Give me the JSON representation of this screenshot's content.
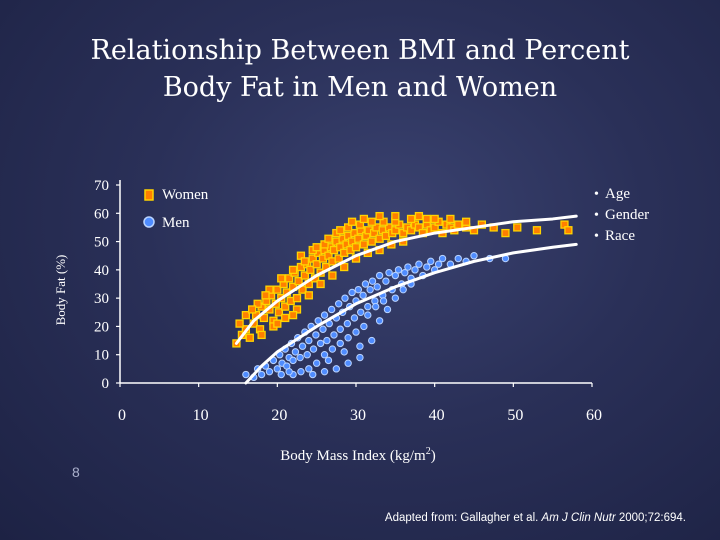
{
  "slide": {
    "title_line1": "Relationship Between BMI and Percent",
    "title_line2": "Body Fat in Men and Women",
    "slide_number": "8",
    "citation_prefix": "Adapted from: Gallagher et al. ",
    "citation_journal": "Am J Clin Nutr",
    "citation_suffix": " 2000;72:694."
  },
  "colors": {
    "women_fill": "#ff7f00",
    "women_edge": "#ffd400",
    "men_fill": "#4f8cff",
    "men_edge": "#b9d3ff",
    "curve": "#ffffff"
  },
  "chart_data": {
    "type": "scatter",
    "xlabel": "Body Mass Index (kg/m",
    "xlabel_sup": "2",
    "xlabel_end": ")",
    "ylabel": "Body Fat (%)",
    "xlim": [
      0,
      60
    ],
    "ylim": [
      0,
      70
    ],
    "x_ticks": [
      0,
      10,
      20,
      30,
      40,
      50,
      60
    ],
    "y_ticks": [
      0,
      10,
      20,
      30,
      40,
      50,
      60,
      70
    ],
    "legend": [
      {
        "name": "Women",
        "marker": "square"
      },
      {
        "name": "Men",
        "marker": "circle"
      }
    ],
    "legend_placement": "top-left",
    "covariates": [
      "Age",
      "Gender",
      "Race"
    ],
    "series": [
      {
        "name": "Women",
        "points": [
          [
            14.8,
            14
          ],
          [
            15.5,
            17
          ],
          [
            16.0,
            19
          ],
          [
            16.5,
            16
          ],
          [
            17.0,
            21
          ],
          [
            17.3,
            24
          ],
          [
            17.8,
            19
          ],
          [
            18.0,
            27
          ],
          [
            18.3,
            23
          ],
          [
            18.6,
            29
          ],
          [
            19.0,
            26
          ],
          [
            19.2,
            31
          ],
          [
            19.5,
            22
          ],
          [
            19.8,
            28
          ],
          [
            20.0,
            33
          ],
          [
            20.2,
            25
          ],
          [
            20.5,
            30
          ],
          [
            20.8,
            35
          ],
          [
            21.0,
            27
          ],
          [
            21.2,
            32
          ],
          [
            21.5,
            37
          ],
          [
            21.7,
            29
          ],
          [
            22.0,
            34
          ],
          [
            22.2,
            39
          ],
          [
            22.5,
            30
          ],
          [
            22.7,
            36
          ],
          [
            23.0,
            41
          ],
          [
            23.2,
            33
          ],
          [
            23.5,
            38
          ],
          [
            23.8,
            42
          ],
          [
            24.0,
            35
          ],
          [
            24.2,
            40
          ],
          [
            24.5,
            44
          ],
          [
            24.8,
            37
          ],
          [
            25.0,
            42
          ],
          [
            25.2,
            46
          ],
          [
            25.5,
            39
          ],
          [
            25.8,
            44
          ],
          [
            26.0,
            47
          ],
          [
            26.2,
            41
          ],
          [
            26.5,
            45
          ],
          [
            26.8,
            48
          ],
          [
            27.0,
            43
          ],
          [
            27.2,
            47
          ],
          [
            27.5,
            50
          ],
          [
            27.8,
            44
          ],
          [
            28.0,
            48
          ],
          [
            28.3,
            51
          ],
          [
            28.5,
            46
          ],
          [
            28.8,
            49
          ],
          [
            29.0,
            52
          ],
          [
            29.3,
            47
          ],
          [
            29.5,
            50
          ],
          [
            29.8,
            53
          ],
          [
            30.0,
            48
          ],
          [
            30.3,
            51
          ],
          [
            30.6,
            54
          ],
          [
            31.0,
            49
          ],
          [
            31.3,
            52
          ],
          [
            31.6,
            54
          ],
          [
            32.0,
            50
          ],
          [
            32.3,
            53
          ],
          [
            32.6,
            55
          ],
          [
            33.0,
            51
          ],
          [
            33.4,
            54
          ],
          [
            33.8,
            52
          ],
          [
            34.2,
            55
          ],
          [
            34.6,
            53
          ],
          [
            35.0,
            54
          ],
          [
            35.5,
            56
          ],
          [
            36.0,
            53
          ],
          [
            36.5,
            55
          ],
          [
            37.0,
            54
          ],
          [
            37.5,
            56
          ],
          [
            38.0,
            55
          ],
          [
            38.5,
            53
          ],
          [
            39.0,
            56
          ],
          [
            39.5,
            54
          ],
          [
            40.0,
            55
          ],
          [
            40.5,
            57
          ],
          [
            41.0,
            53
          ],
          [
            41.5,
            56
          ],
          [
            42.0,
            55
          ],
          [
            42.5,
            54
          ],
          [
            43.0,
            56
          ],
          [
            44.0,
            55
          ],
          [
            45.0,
            54
          ],
          [
            46.0,
            56
          ],
          [
            47.5,
            55
          ],
          [
            49.0,
            53
          ],
          [
            50.5,
            55
          ],
          [
            53.0,
            54
          ],
          [
            56.5,
            56
          ],
          [
            57.0,
            54
          ],
          [
            19.5,
            20
          ],
          [
            21.0,
            23
          ],
          [
            22.5,
            26
          ],
          [
            24.0,
            31
          ],
          [
            25.5,
            35
          ],
          [
            27.0,
            38
          ],
          [
            28.5,
            41
          ],
          [
            30.0,
            44
          ],
          [
            31.5,
            46
          ],
          [
            33.0,
            47
          ],
          [
            34.5,
            49
          ],
          [
            36.0,
            50
          ],
          [
            23.0,
            45
          ],
          [
            24.5,
            47
          ],
          [
            26.0,
            49
          ],
          [
            27.5,
            53
          ],
          [
            29.0,
            55
          ],
          [
            30.5,
            56
          ],
          [
            32.0,
            57
          ],
          [
            33.5,
            57
          ],
          [
            35.0,
            57
          ],
          [
            37.0,
            58
          ],
          [
            39.0,
            58
          ],
          [
            18.0,
            17
          ],
          [
            20.0,
            21
          ],
          [
            22.0,
            24
          ],
          [
            16.0,
            24
          ],
          [
            17.5,
            28
          ],
          [
            19.0,
            33
          ],
          [
            20.5,
            37
          ],
          [
            22.0,
            40
          ],
          [
            23.5,
            43
          ],
          [
            25.0,
            48
          ],
          [
            26.5,
            51
          ],
          [
            28.0,
            54
          ],
          [
            29.5,
            57
          ],
          [
            31.0,
            58
          ],
          [
            33.0,
            59
          ],
          [
            35.0,
            59
          ],
          [
            38.0,
            59
          ],
          [
            40.0,
            58
          ],
          [
            42.0,
            58
          ],
          [
            44.0,
            57
          ],
          [
            15.2,
            21
          ],
          [
            16.8,
            26
          ],
          [
            18.5,
            31
          ]
        ]
      },
      {
        "name": "Men",
        "points": [
          [
            16.0,
            3
          ],
          [
            17.0,
            2
          ],
          [
            17.5,
            5
          ],
          [
            18.0,
            3
          ],
          [
            18.5,
            6
          ],
          [
            19.0,
            4
          ],
          [
            19.5,
            8
          ],
          [
            20.0,
            5
          ],
          [
            20.3,
            10
          ],
          [
            20.6,
            7
          ],
          [
            21.0,
            12
          ],
          [
            21.2,
            6
          ],
          [
            21.5,
            9
          ],
          [
            21.8,
            14
          ],
          [
            22.0,
            8
          ],
          [
            22.3,
            11
          ],
          [
            22.6,
            16
          ],
          [
            22.9,
            9
          ],
          [
            23.2,
            13
          ],
          [
            23.5,
            18
          ],
          [
            23.8,
            10
          ],
          [
            24.0,
            15
          ],
          [
            24.3,
            20
          ],
          [
            24.6,
            12
          ],
          [
            24.9,
            17
          ],
          [
            25.2,
            22
          ],
          [
            25.5,
            14
          ],
          [
            25.8,
            19
          ],
          [
            26.0,
            24
          ],
          [
            26.3,
            15
          ],
          [
            26.6,
            21
          ],
          [
            26.9,
            26
          ],
          [
            27.2,
            17
          ],
          [
            27.5,
            23
          ],
          [
            27.8,
            28
          ],
          [
            28.0,
            19
          ],
          [
            28.3,
            25
          ],
          [
            28.6,
            30
          ],
          [
            28.9,
            21
          ],
          [
            29.2,
            27
          ],
          [
            29.5,
            32
          ],
          [
            29.8,
            23
          ],
          [
            30.0,
            29
          ],
          [
            30.3,
            33
          ],
          [
            30.6,
            25
          ],
          [
            30.9,
            31
          ],
          [
            31.2,
            35
          ],
          [
            31.5,
            27
          ],
          [
            31.8,
            33
          ],
          [
            32.1,
            36
          ],
          [
            32.4,
            29
          ],
          [
            32.7,
            34
          ],
          [
            33.0,
            38
          ],
          [
            33.4,
            31
          ],
          [
            33.8,
            36
          ],
          [
            34.2,
            39
          ],
          [
            34.6,
            33
          ],
          [
            35.0,
            38
          ],
          [
            35.4,
            40
          ],
          [
            35.8,
            35
          ],
          [
            36.2,
            39
          ],
          [
            36.6,
            41
          ],
          [
            37.0,
            37
          ],
          [
            37.5,
            40
          ],
          [
            38.0,
            42
          ],
          [
            38.5,
            38
          ],
          [
            39.0,
            41
          ],
          [
            39.5,
            43
          ],
          [
            40.0,
            40
          ],
          [
            40.5,
            42
          ],
          [
            41.0,
            44
          ],
          [
            42.0,
            42
          ],
          [
            43.0,
            44
          ],
          [
            44.0,
            43
          ],
          [
            45.0,
            45
          ],
          [
            47.0,
            44
          ],
          [
            49.0,
            44
          ],
          [
            26.0,
            10
          ],
          [
            27.0,
            12
          ],
          [
            28.0,
            14
          ],
          [
            29.0,
            16
          ],
          [
            30.0,
            18
          ],
          [
            31.0,
            20
          ],
          [
            24.0,
            5
          ],
          [
            25.0,
            7
          ],
          [
            26.5,
            8
          ],
          [
            28.5,
            11
          ],
          [
            30.5,
            13
          ],
          [
            22.0,
            3
          ],
          [
            23.0,
            4
          ],
          [
            24.5,
            3
          ],
          [
            26.0,
            4
          ],
          [
            27.5,
            5
          ],
          [
            29.0,
            7
          ],
          [
            30.5,
            9
          ],
          [
            32.0,
            15
          ],
          [
            33.0,
            22
          ],
          [
            34.0,
            26
          ],
          [
            35.0,
            30
          ],
          [
            36.0,
            33
          ],
          [
            37.0,
            35
          ],
          [
            20.5,
            3
          ],
          [
            21.5,
            4
          ],
          [
            31.5,
            24
          ],
          [
            32.5,
            27
          ],
          [
            33.5,
            29
          ]
        ]
      }
    ],
    "fit_curves": [
      {
        "name": "Women",
        "points": [
          [
            14.8,
            14
          ],
          [
            17,
            22
          ],
          [
            20,
            29
          ],
          [
            25,
            38
          ],
          [
            30,
            45
          ],
          [
            35,
            50
          ],
          [
            40,
            53
          ],
          [
            45,
            55
          ],
          [
            50,
            57
          ],
          [
            55,
            58
          ],
          [
            58,
            59
          ]
        ]
      },
      {
        "name": "Men",
        "points": [
          [
            16,
            -3
          ],
          [
            18,
            6
          ],
          [
            20,
            11
          ],
          [
            25,
            20
          ],
          [
            30,
            28
          ],
          [
            35,
            34
          ],
          [
            40,
            39
          ],
          [
            45,
            43
          ],
          [
            50,
            46
          ],
          [
            55,
            48
          ],
          [
            58,
            49
          ]
        ]
      }
    ]
  }
}
